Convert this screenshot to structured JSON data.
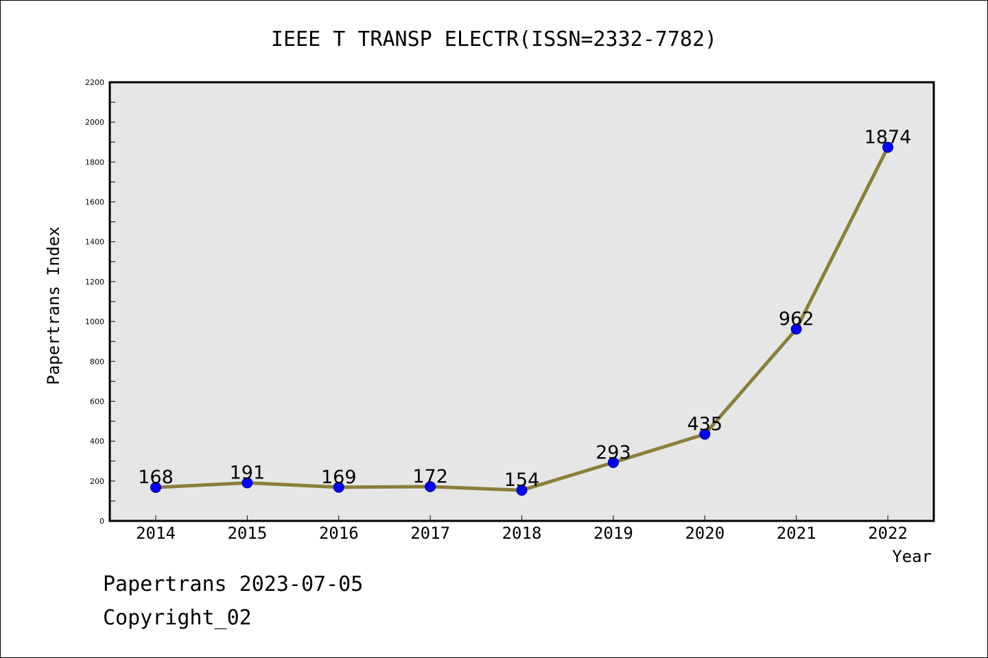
{
  "chart_data": {
    "type": "line",
    "title": "IEEE T TRANSP ELECTR(ISSN=2332-7782)",
    "xlabel": "Year",
    "ylabel": "Papertrans Index",
    "categories": [
      "2014",
      "2015",
      "2016",
      "2017",
      "2018",
      "2019",
      "2020",
      "2021",
      "2022"
    ],
    "values": [
      168,
      191,
      169,
      172,
      154,
      293,
      435,
      962,
      1874
    ],
    "ylim": [
      0,
      2200
    ],
    "yticks": [
      0,
      200,
      400,
      600,
      800,
      1000,
      1200,
      1400,
      1600,
      1800,
      2000,
      2200
    ],
    "grid": false,
    "data_labels": true,
    "colors": {
      "line": "#8b7d3a",
      "marker_fill": "#0000ff",
      "marker_stroke": "#00008b",
      "plot_background": "#e6e6e6"
    }
  },
  "footer": {
    "line1": "Papertrans 2023-07-05",
    "line2": "Copyright_02"
  }
}
